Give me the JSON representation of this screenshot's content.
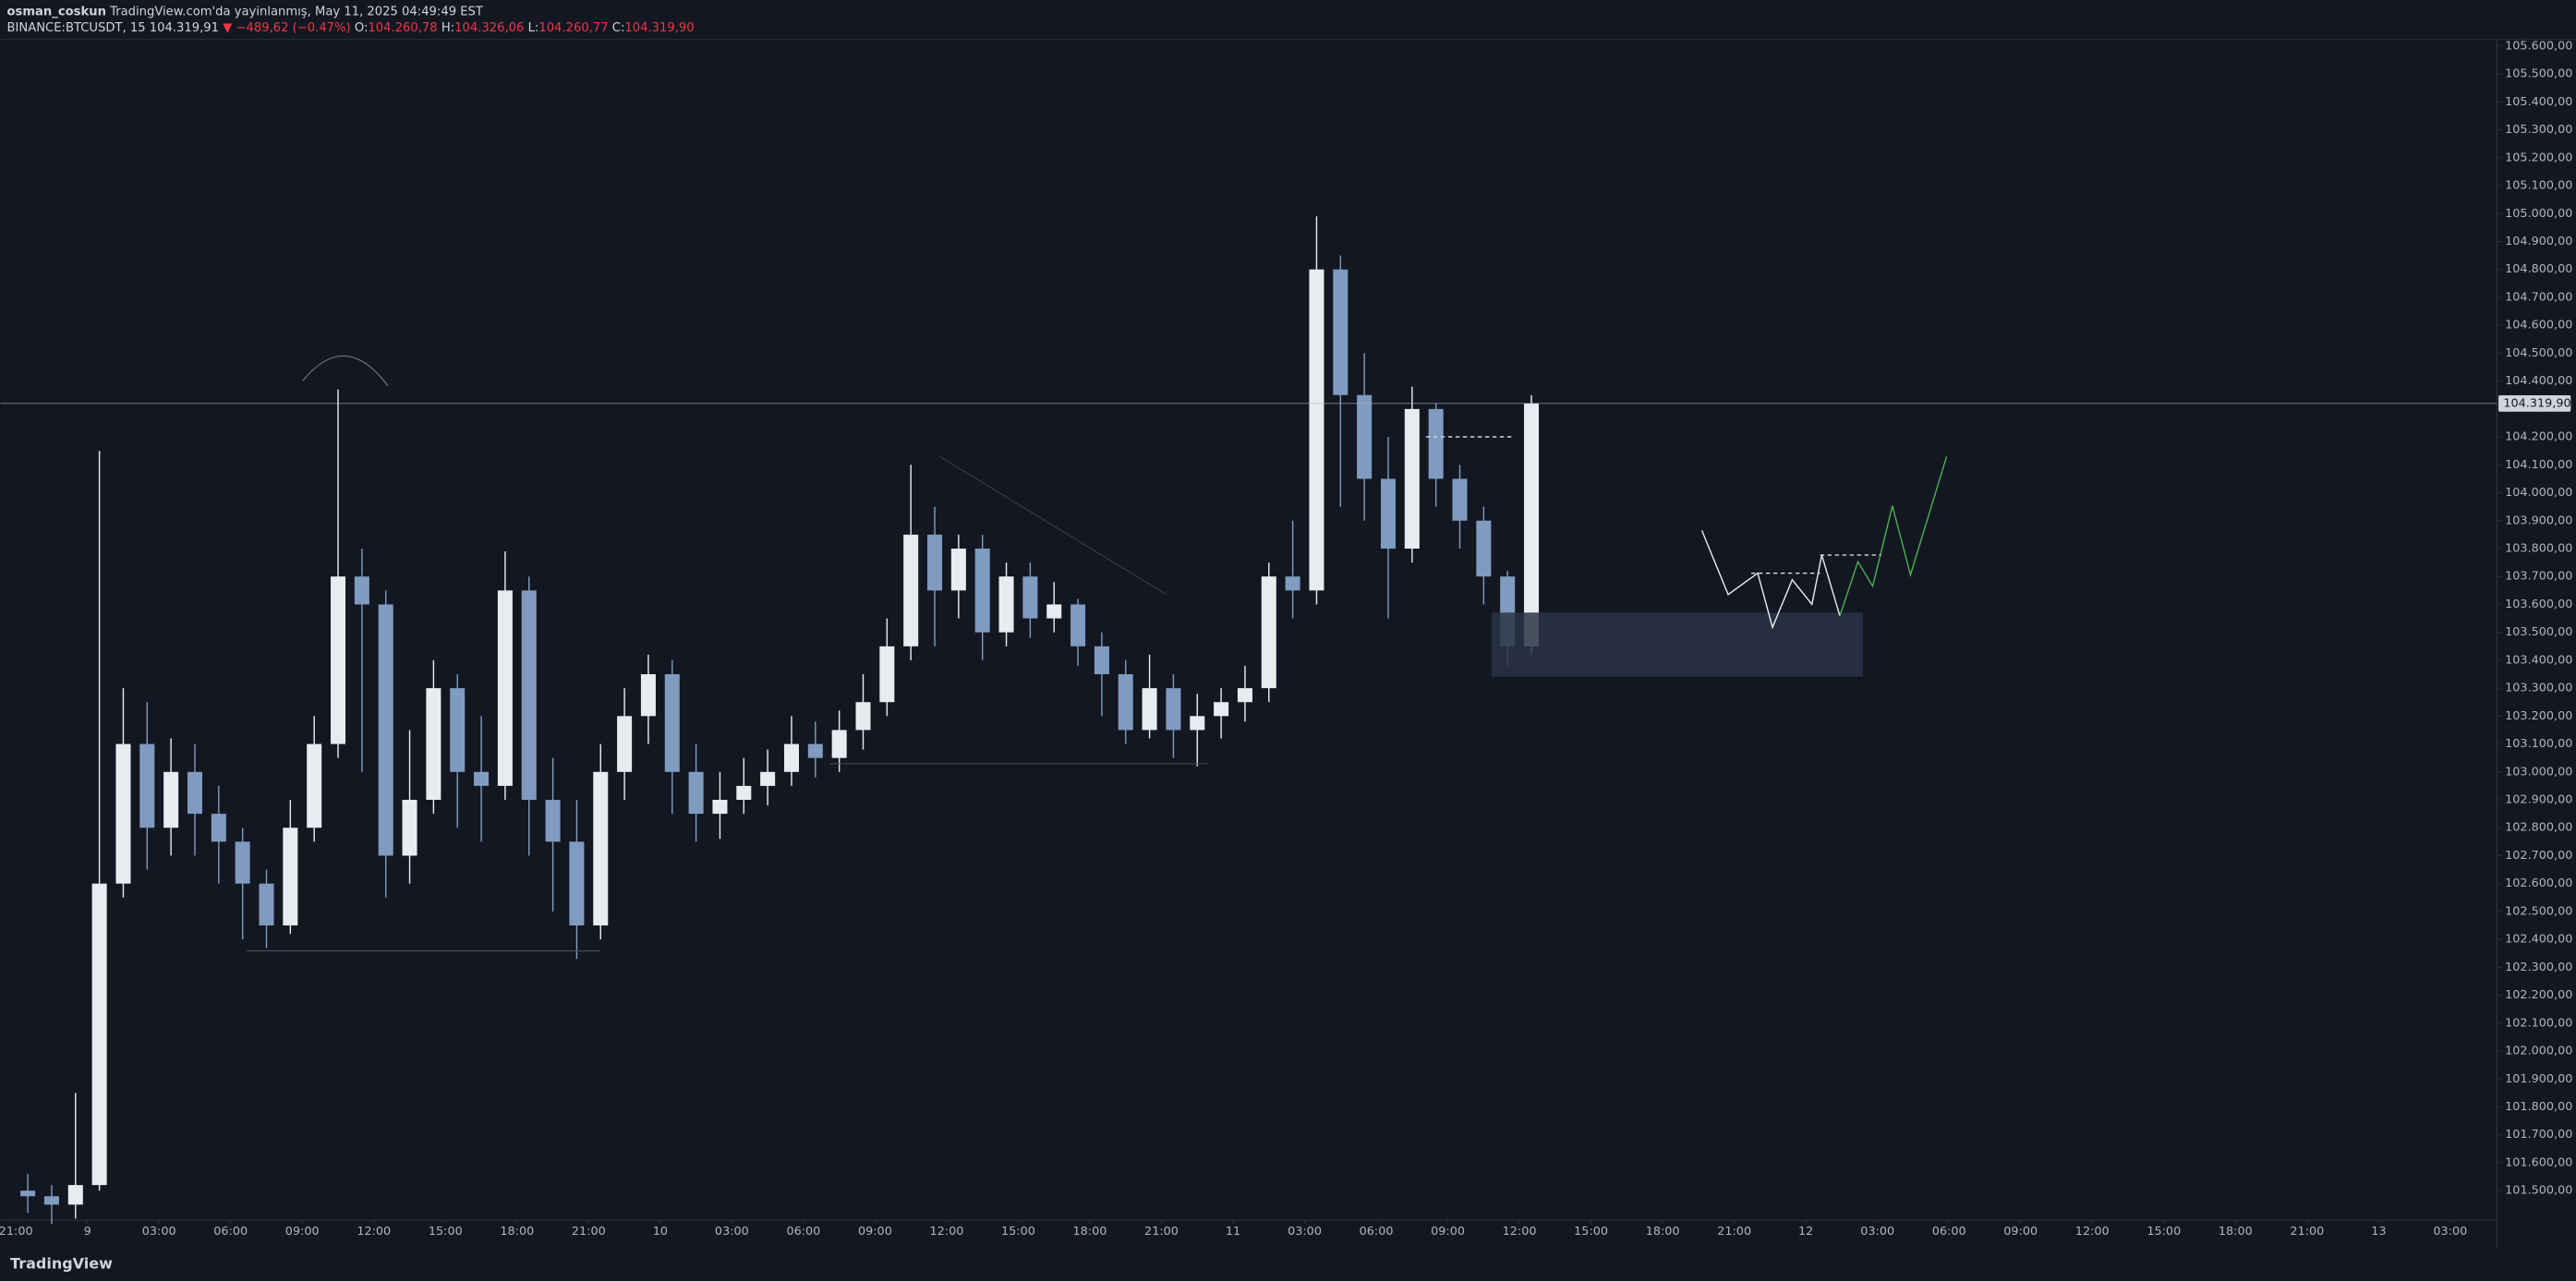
{
  "header": {
    "author": "osman_coskun",
    "published": "TradingView.com'da yayinlanmış, May 11, 2025 04:49:49 EST",
    "symbol": "BINANCE:BTCUSDT, 15",
    "last": "104.319,91",
    "change": "▼ −489,62 (−0.47%)",
    "ohlc": [
      {
        "label": "O:",
        "value": "104.260,78"
      },
      {
        "label": "H:",
        "value": "104.326,06"
      },
      {
        "label": "L:",
        "value": "104.260,77"
      },
      {
        "label": "C:",
        "value": "104.319,90"
      }
    ]
  },
  "logo": "TradingView",
  "chart_data": {
    "type": "candlestick",
    "up_color": "#e8ebef",
    "down_color": "#7f9bbf",
    "x": [
      -3,
      -2,
      -1,
      0,
      1,
      2,
      3,
      4,
      5,
      6,
      7,
      8,
      9,
      10,
      11,
      12,
      13,
      14,
      15,
      16,
      17,
      18,
      19,
      20,
      21,
      22,
      23,
      24,
      25,
      26,
      27,
      28,
      29,
      30,
      31,
      32,
      33,
      34,
      35,
      36,
      37,
      38,
      39,
      40,
      41,
      42,
      43,
      44,
      45,
      46,
      47,
      48,
      49,
      50,
      51,
      52,
      53,
      54,
      55,
      56,
      57,
      58,
      59,
      60
    ],
    "open": [
      101500,
      101480,
      101450,
      101520,
      102600,
      103100,
      102800,
      103000,
      102850,
      102750,
      102600,
      102450,
      102800,
      103100,
      103700,
      103600,
      102700,
      102900,
      103300,
      103000,
      102950,
      103650,
      102900,
      102750,
      102450,
      103000,
      103200,
      103350,
      103000,
      102850,
      102900,
      102950,
      103000,
      103100,
      103050,
      103150,
      103250,
      103450,
      103850,
      103650,
      103800,
      103500,
      103700,
      103550,
      103600,
      103450,
      103350,
      103150,
      103300,
      103150,
      103200,
      103250,
      103300,
      103700,
      103650,
      104800,
      104350,
      104050,
      103800,
      104300,
      104050,
      103900,
      103700,
      103450
    ],
    "high": [
      101560,
      101520,
      101850,
      104150,
      103300,
      103250,
      103120,
      103100,
      102950,
      102800,
      102650,
      102900,
      103200,
      104370,
      103800,
      103650,
      103150,
      103400,
      103350,
      103200,
      103790,
      103700,
      103050,
      102900,
      103100,
      103300,
      103420,
      103400,
      103100,
      103000,
      103050,
      103080,
      103200,
      103180,
      103220,
      103350,
      103550,
      104100,
      103950,
      103850,
      103850,
      103750,
      103750,
      103680,
      103620,
      103500,
      103400,
      103420,
      103350,
      103280,
      103300,
      103380,
      103750,
      103900,
      104990,
      104850,
      104500,
      104200,
      104380,
      104320,
      104100,
      103950,
      103720,
      104350
    ],
    "low": [
      101420,
      101380,
      101400,
      101500,
      102550,
      102650,
      102700,
      102700,
      102600,
      102400,
      102370,
      102420,
      102750,
      103050,
      103000,
      102550,
      102600,
      102850,
      102800,
      102750,
      102900,
      102700,
      102500,
      102330,
      102400,
      102900,
      103100,
      102850,
      102750,
      102760,
      102850,
      102880,
      102950,
      102980,
      103000,
      103080,
      103200,
      103400,
      103450,
      103550,
      103400,
      103450,
      103480,
      103500,
      103380,
      103200,
      103100,
      103120,
      103050,
      103020,
      103120,
      103180,
      103250,
      103550,
      103600,
      103950,
      103900,
      103550,
      103750,
      103950,
      103800,
      103600,
      103380,
      103420
    ],
    "close": [
      101480,
      101450,
      101520,
      102600,
      103100,
      102800,
      103000,
      102850,
      102750,
      102600,
      102450,
      102800,
      103100,
      103700,
      103600,
      102700,
      102900,
      103300,
      103000,
      102950,
      103650,
      102900,
      102750,
      102450,
      103000,
      103200,
      103350,
      103000,
      102850,
      102900,
      102950,
      103000,
      103100,
      103050,
      103150,
      103250,
      103450,
      103850,
      103650,
      103800,
      103500,
      103700,
      103550,
      103600,
      103450,
      103350,
      103150,
      103300,
      103150,
      103200,
      103250,
      103300,
      103700,
      103650,
      104800,
      104350,
      104050,
      103800,
      104300,
      104050,
      103900,
      103700,
      103450,
      104320
    ],
    "xlim": [
      -3.65,
      100.95
    ],
    "xticks": [
      {
        "value": -3,
        "label": "21:00"
      },
      {
        "value": 0,
        "label": "9"
      },
      {
        "value": 3,
        "label": "03:00"
      },
      {
        "value": 6,
        "label": "06:00"
      },
      {
        "value": 9,
        "label": "09:00"
      },
      {
        "value": 12,
        "label": "12:00"
      },
      {
        "value": 15,
        "label": "15:00"
      },
      {
        "value": 18,
        "label": "18:00"
      },
      {
        "value": 21,
        "label": "21:00"
      },
      {
        "value": 24,
        "label": "10"
      },
      {
        "value": 27,
        "label": "03:00"
      },
      {
        "value": 30,
        "label": "06:00"
      },
      {
        "value": 33,
        "label": "09:00"
      },
      {
        "value": 36,
        "label": "12:00"
      },
      {
        "value": 39,
        "label": "15:00"
      },
      {
        "value": 42,
        "label": "18:00"
      },
      {
        "value": 45,
        "label": "21:00"
      },
      {
        "value": 48,
        "label": "11"
      },
      {
        "value": 51,
        "label": "03:00"
      },
      {
        "value": 54,
        "label": "06:00"
      },
      {
        "value": 57,
        "label": "09:00"
      },
      {
        "value": 60,
        "label": "12:00"
      },
      {
        "value": 63,
        "label": "15:00"
      },
      {
        "value": 66,
        "label": "18:00"
      },
      {
        "value": 69,
        "label": "21:00"
      },
      {
        "value": 72,
        "label": "12"
      },
      {
        "value": 75,
        "label": "03:00"
      },
      {
        "value": 78,
        "label": "06:00"
      },
      {
        "value": 81,
        "label": "09:00"
      },
      {
        "value": 84,
        "label": "12:00"
      },
      {
        "value": 87,
        "label": "15:00"
      },
      {
        "value": 90,
        "label": "18:00"
      },
      {
        "value": 93,
        "label": "21:00"
      },
      {
        "value": 96,
        "label": "13"
      },
      {
        "value": 99,
        "label": "03:00"
      }
    ],
    "ylim": [
      101394,
      105624
    ],
    "yticks": [
      {
        "value": 101500,
        "label": "101.500,00"
      },
      {
        "value": 101600,
        "label": "101.600,00"
      },
      {
        "value": 101700,
        "label": "101.700,00"
      },
      {
        "value": 101800,
        "label": "101.800,00"
      },
      {
        "value": 101900,
        "label": "101.900,00"
      },
      {
        "value": 102000,
        "label": "102.000,00"
      },
      {
        "value": 102100,
        "label": "102.100,00"
      },
      {
        "value": 102200,
        "label": "102.200,00"
      },
      {
        "value": 102300,
        "label": "102.300,00"
      },
      {
        "value": 102400,
        "label": "102.400,00"
      },
      {
        "value": 102500,
        "label": "102.500,00"
      },
      {
        "value": 102600,
        "label": "102.600,00"
      },
      {
        "value": 102700,
        "label": "102.700,00"
      },
      {
        "value": 102800,
        "label": "102.800,00"
      },
      {
        "value": 102900,
        "label": "102.900,00"
      },
      {
        "value": 103000,
        "label": "103.000,00"
      },
      {
        "value": 103100,
        "label": "103.100,00"
      },
      {
        "value": 103200,
        "label": "103.200,00"
      },
      {
        "value": 103300,
        "label": "103.300,00"
      },
      {
        "value": 103400,
        "label": "103.400,00"
      },
      {
        "value": 103500,
        "label": "103.500,00"
      },
      {
        "value": 103600,
        "label": "103.600,00"
      },
      {
        "value": 103700,
        "label": "103.700,00"
      },
      {
        "value": 103800,
        "label": "103.800,00"
      },
      {
        "value": 103900,
        "label": "103.900,00"
      },
      {
        "value": 104000,
        "label": "104.000,00"
      },
      {
        "value": 104100,
        "label": "104.100,00"
      },
      {
        "value": 104200,
        "label": "104.200,00"
      },
      {
        "value": 104400,
        "label": "104.400,00"
      },
      {
        "value": 104500,
        "label": "104.500,00"
      },
      {
        "value": 104600,
        "label": "104.600,00"
      },
      {
        "value": 104700,
        "label": "104.700,00"
      },
      {
        "value": 104800,
        "label": "104.800,00"
      },
      {
        "value": 104900,
        "label": "104.900,00"
      },
      {
        "value": 105000,
        "label": "105.000,00"
      },
      {
        "value": 105100,
        "label": "105.100,00"
      },
      {
        "value": 105200,
        "label": "105.200,00"
      },
      {
        "value": 105300,
        "label": "105.300,00"
      },
      {
        "value": 105400,
        "label": "105.400,00"
      },
      {
        "value": 105500,
        "label": "105.500,00"
      },
      {
        "value": 105600,
        "label": "105.600,00"
      }
    ],
    "price_line": {
      "value": 104319.9,
      "label": "104.319,90"
    }
  }
}
